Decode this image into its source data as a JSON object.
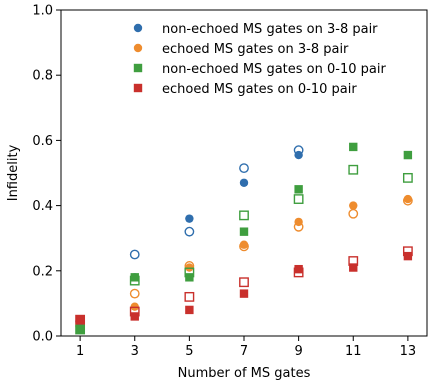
{
  "chart_data": {
    "type": "scatter",
    "title": "",
    "xlabel": "Number of MS gates",
    "ylabel": "Infidelity",
    "xlim": [
      0.3,
      13.7
    ],
    "ylim": [
      0.0,
      1.0
    ],
    "xticks": [
      1,
      3,
      5,
      7,
      9,
      11,
      13
    ],
    "yticks": [
      0.0,
      0.2,
      0.4,
      0.6,
      0.8,
      1.0
    ],
    "grid": false,
    "legend_position": "top-right",
    "series": [
      {
        "name": "non-echoed MS gates on 3-8 pair",
        "color": "#2f6ead",
        "marker": "circle",
        "filled": [
          [
            1,
            0.03
          ],
          [
            3,
            0.18
          ],
          [
            5,
            0.36
          ],
          [
            7,
            0.47
          ],
          [
            9,
            0.555
          ]
        ],
        "hollow": [
          [
            1,
            0.045
          ],
          [
            3,
            0.25
          ],
          [
            5,
            0.32
          ],
          [
            7,
            0.515
          ],
          [
            9,
            0.57
          ]
        ]
      },
      {
        "name": "echoed MS gates on 3-8 pair",
        "color": "#ee8c2e",
        "marker": "circle",
        "filled": [
          [
            1,
            0.02
          ],
          [
            3,
            0.09
          ],
          [
            5,
            0.21
          ],
          [
            7,
            0.28
          ],
          [
            9,
            0.35
          ],
          [
            11,
            0.4
          ],
          [
            13,
            0.42
          ]
        ],
        "hollow": [
          [
            1,
            0.03
          ],
          [
            3,
            0.13
          ],
          [
            5,
            0.215
          ],
          [
            7,
            0.275
          ],
          [
            9,
            0.335
          ],
          [
            11,
            0.375
          ],
          [
            13,
            0.415
          ]
        ]
      },
      {
        "name": "non-echoed MS gates on 0-10 pair",
        "color": "#3f9e3f",
        "marker": "square",
        "filled": [
          [
            1,
            0.02
          ],
          [
            3,
            0.18
          ],
          [
            5,
            0.18
          ],
          [
            7,
            0.32
          ],
          [
            9,
            0.45
          ],
          [
            11,
            0.58
          ],
          [
            13,
            0.555
          ]
        ],
        "hollow": [
          [
            1,
            0.02
          ],
          [
            3,
            0.17
          ],
          [
            5,
            0.195
          ],
          [
            7,
            0.37
          ],
          [
            9,
            0.42
          ],
          [
            11,
            0.51
          ],
          [
            13,
            0.485
          ]
        ]
      },
      {
        "name": "echoed MS gates on 0-10 pair",
        "color": "#c9302c",
        "marker": "square",
        "filled": [
          [
            1,
            0.05
          ],
          [
            3,
            0.06
          ],
          [
            5,
            0.08
          ],
          [
            7,
            0.13
          ],
          [
            9,
            0.205
          ],
          [
            11,
            0.21
          ],
          [
            13,
            0.245
          ]
        ],
        "hollow": [
          [
            1,
            0.05
          ],
          [
            3,
            0.075
          ],
          [
            5,
            0.12
          ],
          [
            7,
            0.165
          ],
          [
            9,
            0.195
          ],
          [
            11,
            0.23
          ],
          [
            13,
            0.26
          ]
        ]
      }
    ]
  }
}
